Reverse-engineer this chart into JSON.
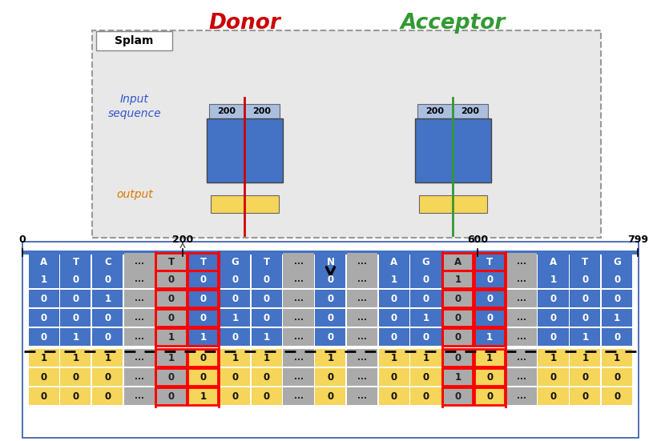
{
  "title_donor": "Donor",
  "title_acceptor": "Acceptor",
  "title_donor_color": "#cc0000",
  "title_acceptor_color": "#339933",
  "splam_label": "Splam",
  "input_seq_label": "Input\nsequence",
  "output_label": "output",
  "input_label_color": "#3355cc",
  "output_label_color": "#dd7700",
  "box_blue": "#4472c4",
  "box_lightblue": "#aabfe0",
  "box_yellow": "#f5d55a",
  "box_gray_bg": "#e0e0e0",
  "donor_line_color": "#cc0000",
  "acceptor_line_color": "#339933",
  "seq_labels": [
    "A",
    "T",
    "C",
    "...",
    "T",
    "T",
    "G",
    "T",
    "...",
    "N",
    "...",
    "A",
    "G",
    "A",
    "T",
    "...",
    "A",
    "T",
    "G"
  ],
  "seq_types": [
    "blue",
    "blue",
    "blue",
    "gray",
    "gray",
    "blue",
    "blue",
    "blue",
    "gray",
    "blue",
    "gray",
    "blue",
    "blue",
    "gray",
    "blue",
    "gray",
    "blue",
    "blue",
    "blue"
  ],
  "input_rows_blue": [
    [
      "1",
      "0",
      "0",
      "...",
      "0",
      "0",
      "0",
      "0",
      "...",
      "0",
      "...",
      "1",
      "0",
      "1",
      "0",
      "...",
      "1",
      "0",
      "0"
    ],
    [
      "0",
      "0",
      "1",
      "...",
      "0",
      "0",
      "0",
      "0",
      "...",
      "0",
      "...",
      "0",
      "0",
      "0",
      "0",
      "...",
      "0",
      "0",
      "0"
    ],
    [
      "0",
      "0",
      "0",
      "...",
      "0",
      "0",
      "1",
      "0",
      "...",
      "0",
      "...",
      "0",
      "1",
      "0",
      "0",
      "...",
      "0",
      "0",
      "1"
    ],
    [
      "0",
      "1",
      "0",
      "...",
      "1",
      "1",
      "0",
      "1",
      "...",
      "0",
      "...",
      "0",
      "0",
      "0",
      "1",
      "...",
      "0",
      "1",
      "0"
    ]
  ],
  "output_rows_yellow": [
    [
      "1",
      "1",
      "1",
      "...",
      "1",
      "0",
      "1",
      "1",
      "...",
      "1",
      "...",
      "1",
      "1",
      "0",
      "1",
      "...",
      "1",
      "1",
      "1"
    ],
    [
      "0",
      "0",
      "0",
      "...",
      "0",
      "0",
      "0",
      "0",
      "...",
      "0",
      "...",
      "0",
      "0",
      "1",
      "0",
      "...",
      "0",
      "0",
      "0"
    ],
    [
      "0",
      "0",
      "0",
      "...",
      "0",
      "1",
      "0",
      "0",
      "...",
      "0",
      "...",
      "0",
      "0",
      "0",
      "0",
      "...",
      "0",
      "0",
      "0"
    ]
  ],
  "col_types": [
    "blue",
    "blue",
    "blue",
    "gray",
    "gray",
    "blue",
    "blue",
    "blue",
    "gray",
    "blue",
    "gray",
    "blue",
    "blue",
    "gray",
    "blue",
    "gray",
    "blue",
    "blue",
    "blue"
  ],
  "donor_cols": [
    4,
    5
  ],
  "acceptor_cols": [
    13,
    14
  ]
}
